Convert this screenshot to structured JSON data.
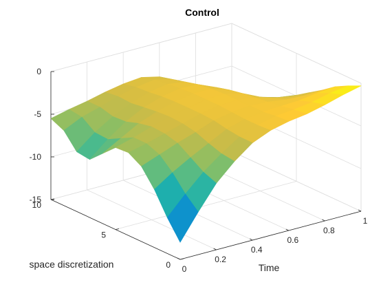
{
  "chart_data": {
    "type": "surface",
    "title": "Control",
    "xlabel": "Time",
    "ylabel": "space discretization",
    "zlabel": "",
    "xlim": [
      0,
      1
    ],
    "ylim": [
      0,
      10
    ],
    "zlim": [
      -15,
      0
    ],
    "xticks": [
      "0",
      "0.2",
      "0.4",
      "0.6",
      "0.8",
      "1"
    ],
    "yticks": [
      "0",
      "5",
      "10"
    ],
    "zticks": [
      "-15",
      "-10",
      "-5",
      "0"
    ],
    "grid": true,
    "colormap": "parula",
    "time": [
      0,
      0.1,
      0.2,
      0.3,
      0.4,
      0.5,
      0.6,
      0.7,
      0.8,
      0.9,
      1.0
    ],
    "space": [
      0,
      1,
      2,
      3,
      4,
      5,
      6,
      7,
      8,
      9,
      10
    ],
    "control_values": [
      [
        -13.0,
        -10.8,
        -8.2,
        -6.2,
        -5.3,
        -5.4,
        -6.8,
        -8.2,
        -8.0,
        -6.2,
        -5.5
      ],
      [
        -10.0,
        -8.6,
        -6.8,
        -5.4,
        -4.8,
        -4.8,
        -5.6,
        -6.4,
        -6.3,
        -5.2,
        -5.0
      ],
      [
        -7.2,
        -6.6,
        -5.6,
        -4.6,
        -4.2,
        -4.1,
        -4.4,
        -4.9,
        -5.0,
        -4.6,
        -4.6
      ],
      [
        -5.2,
        -5.0,
        -4.5,
        -3.9,
        -3.6,
        -3.5,
        -3.6,
        -3.8,
        -4.0,
        -3.9,
        -4.1
      ],
      [
        -3.6,
        -3.6,
        -3.4,
        -3.1,
        -3.0,
        -3.0,
        -3.0,
        -3.1,
        -3.3,
        -3.4,
        -3.7
      ],
      [
        -2.7,
        -2.8,
        -2.8,
        -2.7,
        -2.6,
        -2.6,
        -2.6,
        -2.7,
        -2.9,
        -3.1,
        -3.5
      ],
      [
        -2.2,
        -2.3,
        -2.5,
        -2.5,
        -2.5,
        -2.5,
        -2.6,
        -2.8,
        -3.2,
        -3.6,
        -4.0
      ],
      [
        -1.9,
        -2.1,
        -2.4,
        -2.6,
        -2.8,
        -3.0,
        -3.3,
        -3.7,
        -4.5,
        -5.6,
        -6.5
      ],
      [
        -1.4,
        -1.8,
        -2.3,
        -2.9,
        -3.4,
        -4.0,
        -4.7,
        -5.6,
        -7.4,
        -9.8,
        -11.8
      ],
      [
        -0.8,
        -1.3,
        -2.0,
        -3.0,
        -3.8,
        -4.6,
        -5.6,
        -7.0,
        -9.5,
        -12.5,
        -14.6
      ],
      [
        -0.3,
        -1.0,
        -1.8,
        -2.9,
        -3.9,
        -4.9,
        -6.0,
        -7.6,
        -10.3,
        -13.5,
        -15.0
      ]
    ]
  }
}
